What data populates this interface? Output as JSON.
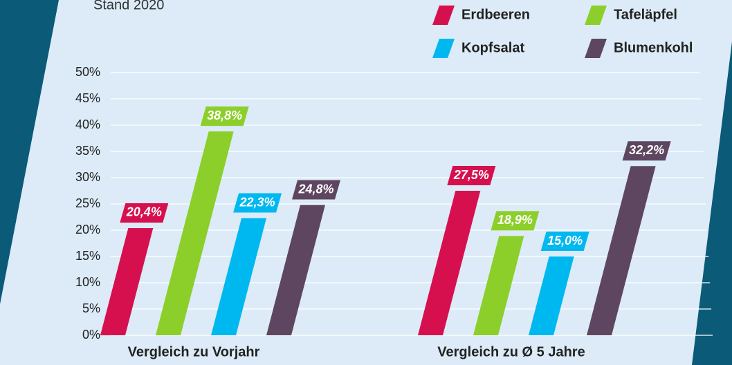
{
  "chart_data": {
    "type": "bar",
    "subtitle": "Stand 2020",
    "categories": [
      "Vergleich zu Vorjahr",
      "Vergleich zu Ø 5 Jahre"
    ],
    "series": [
      {
        "name": "Erdbeeren",
        "color": "#d6104f",
        "values": [
          20.4,
          27.5
        ],
        "value_labels": [
          "20,4%",
          "27,5%"
        ]
      },
      {
        "name": "Tafeläpfel",
        "color": "#8ccf2a",
        "values": [
          38.8,
          18.9
        ],
        "value_labels": [
          "38,8%",
          "18,9%"
        ]
      },
      {
        "name": "Kopfsalat",
        "color": "#00b8f0",
        "values": [
          22.3,
          15.0
        ],
        "value_labels": [
          "22,3%",
          "15,0%"
        ]
      },
      {
        "name": "Blumenkohl",
        "color": "#5e4660",
        "values": [
          24.8,
          32.2
        ],
        "value_labels": [
          "24,8%",
          "32,2%"
        ]
      }
    ],
    "ylim": [
      0,
      50
    ],
    "yticks": [
      {
        "value": 0,
        "label": "0%"
      },
      {
        "value": 5,
        "label": "5%"
      },
      {
        "value": 10,
        "label": "10%"
      },
      {
        "value": 15,
        "label": "15%"
      },
      {
        "value": 20,
        "label": "20%"
      },
      {
        "value": 25,
        "label": "25%"
      },
      {
        "value": 30,
        "label": "30%"
      },
      {
        "value": 35,
        "label": "35%"
      },
      {
        "value": 40,
        "label": "40%"
      },
      {
        "value": 45,
        "label": "45%"
      },
      {
        "value": 50,
        "label": "50%"
      }
    ],
    "grid": true,
    "legend": "upper right"
  }
}
